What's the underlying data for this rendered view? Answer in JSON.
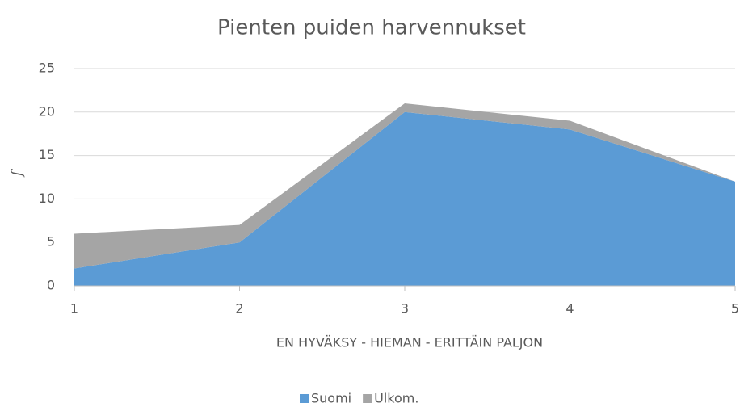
{
  "chart_data": {
    "type": "stacked_area",
    "title": "Pienten puiden harvennukset",
    "x_label": "EN HYVÄKSY - HIEMAN - ERITTÄIN PALJON",
    "y_label": "f",
    "x": [
      1,
      2,
      3,
      4,
      5
    ],
    "series": [
      {
        "name": "Suomi",
        "color": "#5b9bd5",
        "values": [
          2,
          5,
          20,
          18,
          12
        ]
      },
      {
        "name": "Ulkom.",
        "color": "#a5a5a5",
        "values": [
          4,
          2,
          1,
          1,
          0
        ]
      }
    ],
    "xlim": [
      1,
      5
    ],
    "xticks": [
      1,
      2,
      3,
      4,
      5
    ],
    "ylim": [
      0,
      25
    ],
    "yticks": [
      0,
      5,
      10,
      15,
      20,
      25
    ],
    "grid": true,
    "legend": "bottom"
  }
}
